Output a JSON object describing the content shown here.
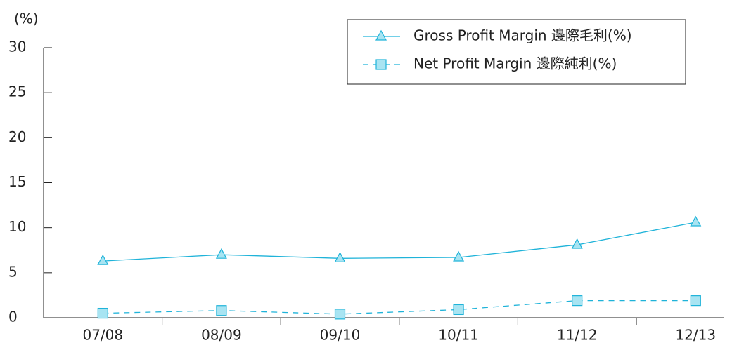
{
  "chart_data": {
    "type": "line",
    "y_label": "(%)",
    "categories": [
      "07/08",
      "08/09",
      "09/10",
      "10/11",
      "11/12",
      "12/13"
    ],
    "series": [
      {
        "name": "Gross Profit Margin 邊際毛利(%)",
        "color": "#1fb3d9",
        "marker": "triangle",
        "linestyle": "solid",
        "values": [
          6.3,
          7.0,
          6.6,
          6.7,
          8.1,
          10.6
        ]
      },
      {
        "name": "Net Profit Margin 邊際純利(%)",
        "color": "#1fb3d9",
        "marker": "square",
        "linestyle": "dashed",
        "values": [
          0.5,
          0.8,
          0.4,
          0.9,
          1.9,
          1.9
        ]
      }
    ],
    "ylim": [
      0,
      30
    ],
    "yticks": [
      0,
      5,
      10,
      15,
      20,
      25,
      30
    ],
    "legend": "upper right"
  }
}
